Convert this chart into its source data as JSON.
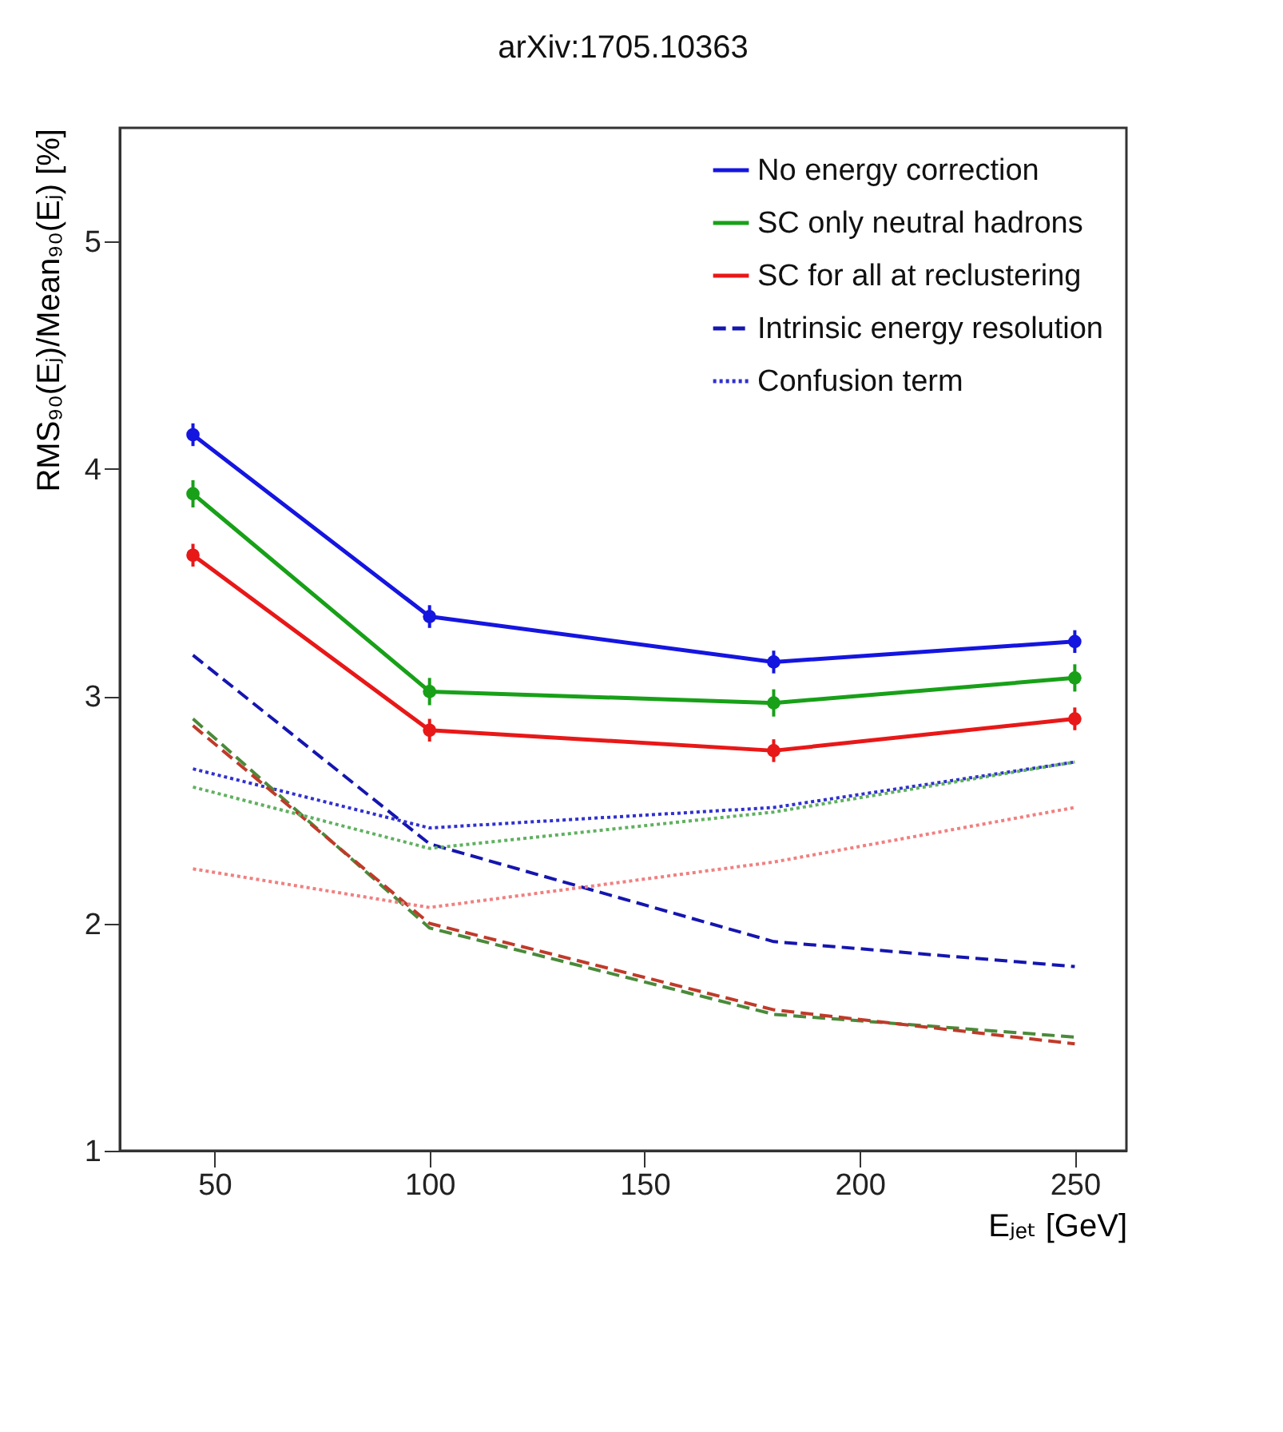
{
  "chart_data": {
    "type": "line",
    "title": "arXiv:1705.10363",
    "xlabel": "Eⱼₑₜ [GeV]",
    "ylabel": "RMS₉₀(Eⱼ)/Mean₉₀(Eⱼ) [%]",
    "x": [
      45,
      100,
      180,
      250
    ],
    "xlim": [
      28,
      262
    ],
    "xticks": [
      50,
      100,
      150,
      200,
      250
    ],
    "ylim": [
      1,
      5.5
    ],
    "yticks": [
      1,
      2,
      3,
      4,
      5
    ],
    "grid": false,
    "legend": "top right",
    "series": [
      {
        "name": "No energy correction",
        "color": "#1515e0",
        "values": [
          4.15,
          3.35,
          3.15,
          3.24
        ],
        "errors": [
          0.05,
          0.05,
          0.05,
          0.05
        ],
        "marker": "circle",
        "line_style": "solid"
      },
      {
        "name": "SC only neutral hadrons",
        "color": "#18a018",
        "values": [
          3.89,
          3.02,
          2.97,
          3.08
        ],
        "errors": [
          0.06,
          0.06,
          0.06,
          0.06
        ],
        "marker": "circle",
        "line_style": "solid"
      },
      {
        "name": "SC for all at reclustering",
        "color": "#e81818",
        "values": [
          3.62,
          2.85,
          2.76,
          2.9
        ],
        "errors": [
          0.05,
          0.05,
          0.05,
          0.05
        ],
        "marker": "circle",
        "line_style": "solid"
      },
      {
        "name": "Intrinsic energy resolution",
        "color": "#1515b0",
        "values": [
          3.18,
          2.35,
          1.92,
          1.81
        ],
        "marker": "none",
        "line_style": "dashed"
      },
      {
        "name": "Confusion term",
        "color": "#3030d0",
        "values": [
          2.68,
          2.42,
          2.51,
          2.71
        ],
        "marker": "none",
        "line_style": "dotted"
      },
      {
        "color": "#4a8a3a",
        "values": [
          2.9,
          1.98,
          1.6,
          1.5
        ],
        "marker": "none",
        "line_style": "dashed"
      },
      {
        "color": "#c03a2a",
        "values": [
          2.87,
          2.0,
          1.62,
          1.47
        ],
        "marker": "none",
        "line_style": "dashed"
      },
      {
        "color": "#60b060",
        "values": [
          2.6,
          2.33,
          2.49,
          2.71
        ],
        "marker": "none",
        "line_style": "dotted"
      },
      {
        "color": "#f08080",
        "values": [
          2.24,
          2.07,
          2.27,
          2.51
        ],
        "marker": "none",
        "line_style": "dotted"
      }
    ]
  }
}
